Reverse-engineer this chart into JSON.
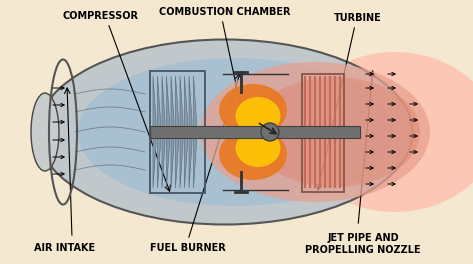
{
  "background_color": "#f5e8d0",
  "labels": {
    "compressor": "COMPRESSOR",
    "combustion": "COMBUSTION CHAMBER",
    "turbine": "TURBINE",
    "fuel_burner": "FUEL BURNER",
    "air_intake": "AIR INTAKE",
    "jet_pipe": "JET PIPE AND\nPROPELLING NOZZLE"
  },
  "colors": {
    "outer_shell": "#c0c8cc",
    "outer_edge": "#555555",
    "inner_blue": "#a8c0d0",
    "inner_blue2": "#c0d4e0",
    "compressor_blade": "#8899aa",
    "compressor_blade_edge": "#556677",
    "compressor_box": "#445566",
    "flame_orange": "#e87820",
    "flame_yellow": "#ffcc00",
    "hot_area": "#e8a090",
    "hot_area2": "#dd8870",
    "turbine_line": "#cc6655",
    "turbine_box": "#885544",
    "shaft": "#707070",
    "shaft_edge": "#404040",
    "nose": "#c8cccc",
    "nose_edge": "#444444",
    "right_glow": "#ffbbaa",
    "text": "#000000",
    "arrow": "#000000",
    "rotation_arrow": "#222222"
  }
}
